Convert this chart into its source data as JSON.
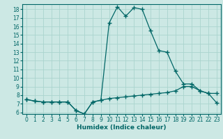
{
  "title": "",
  "xlabel": "Humidex (Indice chaleur)",
  "bg_color": "#cce8e4",
  "line_color": "#006666",
  "grid_color": "#aad4ce",
  "xlim": [
    -0.5,
    23.5
  ],
  "ylim": [
    5.8,
    18.6
  ],
  "x_ticks": [
    0,
    1,
    2,
    3,
    4,
    5,
    6,
    7,
    8,
    9,
    10,
    11,
    12,
    13,
    14,
    15,
    16,
    17,
    18,
    19,
    20,
    21,
    22,
    23
  ],
  "y_ticks": [
    6,
    7,
    8,
    9,
    10,
    11,
    12,
    13,
    14,
    15,
    16,
    17,
    18
  ],
  "line1_x": [
    0,
    1,
    2,
    3,
    4,
    5,
    6,
    7,
    8,
    9,
    10,
    11,
    12,
    13,
    14,
    15,
    16,
    17,
    18,
    19,
    20,
    21,
    22,
    23
  ],
  "line1_y": [
    7.5,
    7.3,
    7.2,
    7.2,
    7.2,
    7.2,
    6.2,
    5.8,
    7.2,
    7.4,
    16.4,
    18.3,
    17.2,
    18.2,
    18.0,
    15.5,
    13.2,
    13.0,
    10.8,
    9.3,
    9.3,
    8.5,
    8.2,
    8.2
  ],
  "line2_x": [
    0,
    1,
    2,
    3,
    4,
    5,
    6,
    7,
    8,
    9,
    10,
    11,
    12,
    13,
    14,
    15,
    16,
    17,
    18,
    19,
    20,
    21,
    22,
    23
  ],
  "line2_y": [
    7.5,
    7.3,
    7.2,
    7.2,
    7.2,
    7.2,
    6.2,
    5.8,
    7.2,
    7.4,
    7.6,
    7.7,
    7.8,
    7.9,
    8.0,
    8.1,
    8.2,
    8.3,
    8.5,
    9.0,
    9.0,
    8.5,
    8.2,
    7.1
  ],
  "marker": "+",
  "marker_size": 4,
  "line_width": 0.9,
  "tick_fontsize": 5.5,
  "label_fontsize": 6.5,
  "label_fontweight": "bold"
}
